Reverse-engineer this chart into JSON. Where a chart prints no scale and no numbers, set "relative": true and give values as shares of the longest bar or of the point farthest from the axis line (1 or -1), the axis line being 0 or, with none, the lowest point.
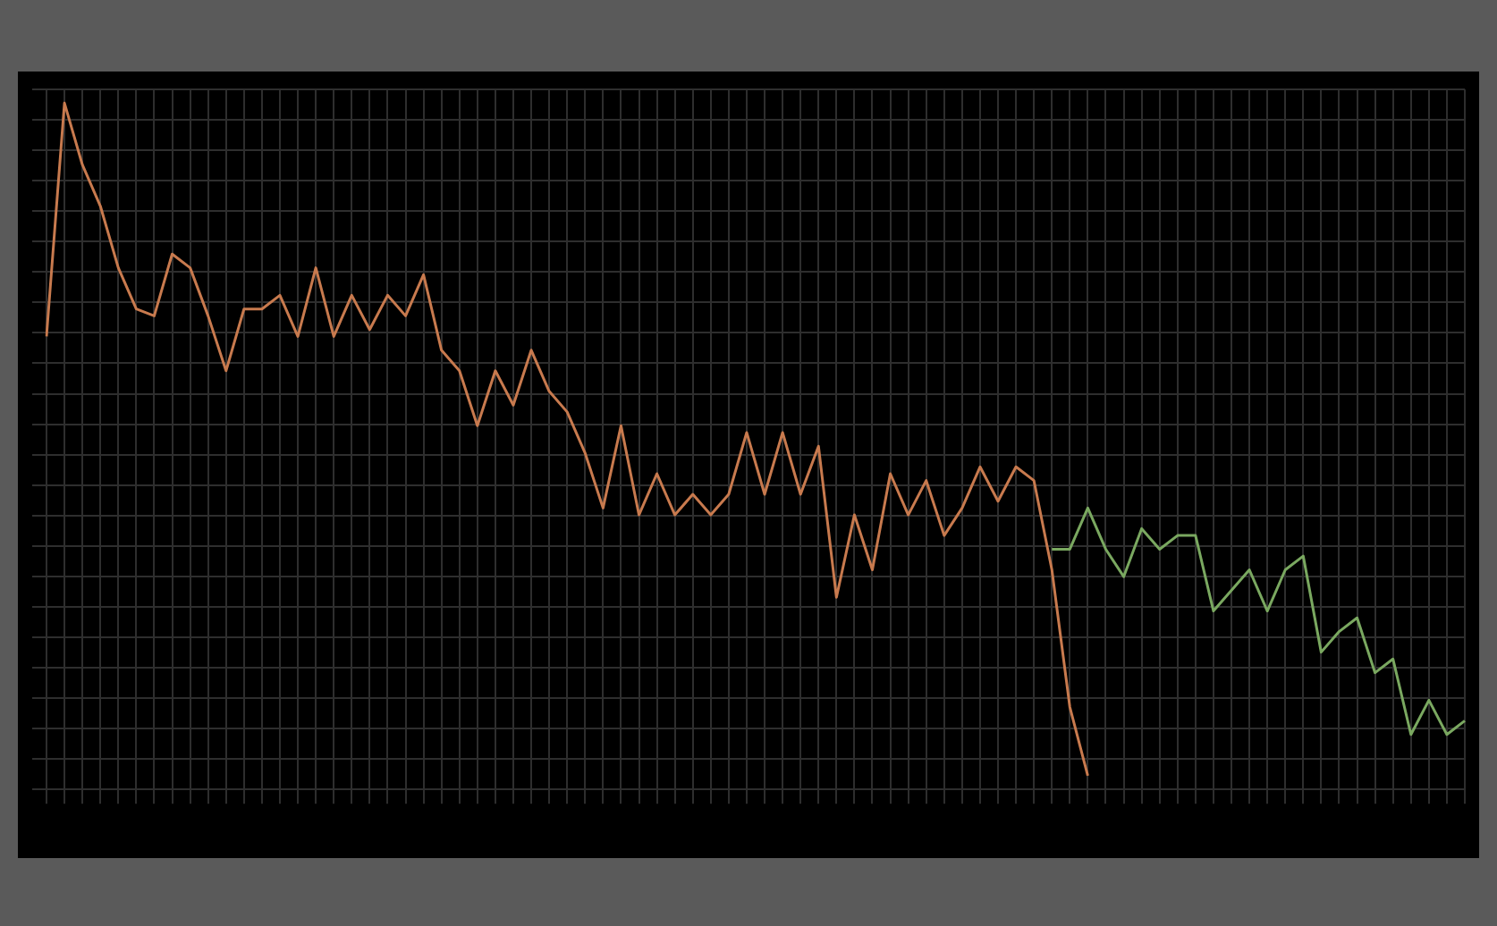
{
  "chart_data": {
    "type": "line",
    "relative": true,
    "grid": true,
    "marker": "none",
    "line_style": "solid",
    "categories": [
      null,
      null,
      null,
      null,
      null,
      null,
      null,
      null,
      null,
      null,
      null,
      null,
      null,
      null,
      null,
      null,
      null,
      null,
      null,
      null,
      null,
      null,
      null,
      null,
      null,
      null,
      null,
      null,
      null,
      null,
      null,
      null,
      null,
      null,
      null,
      null,
      null,
      null,
      null,
      null,
      null,
      null,
      null,
      null,
      null,
      null,
      null,
      null,
      null,
      null,
      null,
      null,
      null,
      null,
      null,
      null,
      null,
      null,
      null,
      null,
      null,
      null,
      null,
      null,
      null,
      null,
      null,
      null,
      null,
      null,
      null,
      null,
      null,
      null,
      null,
      null,
      null,
      null,
      null,
      null
    ],
    "series": [
      {
        "color": "#c87a4e",
        "values": [
          0.66,
          1.0,
          0.91,
          0.85,
          0.76,
          0.7,
          0.69,
          0.78,
          0.76,
          0.69,
          0.61,
          0.7,
          0.7,
          0.72,
          0.66,
          0.76,
          0.66,
          0.72,
          0.67,
          0.72,
          0.69,
          0.75,
          0.64,
          0.61,
          0.53,
          0.61,
          0.56,
          0.64,
          0.58,
          0.55,
          0.49,
          0.41,
          0.53,
          0.4,
          0.46,
          0.4,
          0.43,
          0.4,
          0.43,
          0.52,
          0.43,
          0.52,
          0.43,
          0.5,
          0.28,
          0.4,
          0.32,
          0.46,
          0.4,
          0.45,
          0.37,
          0.41,
          0.47,
          0.42,
          0.47,
          0.45,
          0.32,
          0.12,
          0.02,
          null,
          null,
          null,
          null,
          null,
          null,
          null,
          null,
          null,
          null,
          null,
          null,
          null,
          null,
          null,
          null,
          null,
          null,
          null,
          null,
          null
        ]
      },
      {
        "color": "#7aa860",
        "values": [
          null,
          null,
          null,
          null,
          null,
          null,
          null,
          null,
          null,
          null,
          null,
          null,
          null,
          null,
          null,
          null,
          null,
          null,
          null,
          null,
          null,
          null,
          null,
          null,
          null,
          null,
          null,
          null,
          null,
          null,
          null,
          null,
          null,
          null,
          null,
          null,
          null,
          null,
          null,
          null,
          null,
          null,
          null,
          null,
          null,
          null,
          null,
          null,
          null,
          null,
          null,
          null,
          null,
          null,
          null,
          null,
          0.35,
          0.35,
          0.41,
          0.35,
          0.31,
          0.38,
          0.35,
          0.37,
          0.37,
          0.26,
          0.29,
          0.32,
          0.26,
          0.32,
          0.34,
          0.2,
          0.23,
          0.25,
          0.17,
          0.19,
          0.08,
          0.13,
          0.08,
          0.1
        ]
      }
    ]
  }
}
